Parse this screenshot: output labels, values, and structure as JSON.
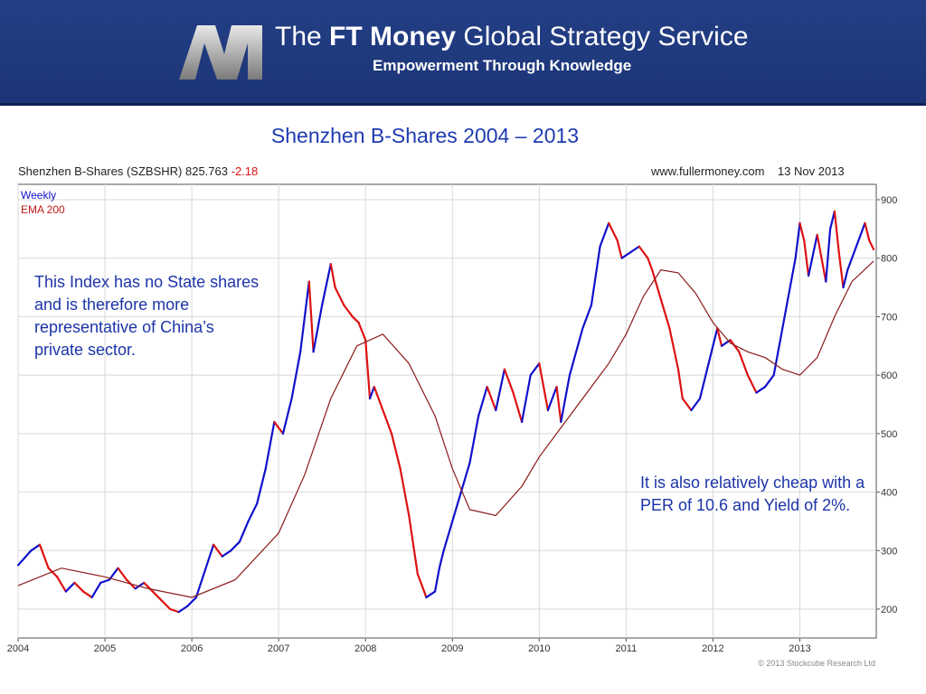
{
  "header": {
    "title_prefix": "The ",
    "title_bold": "FT Money",
    "title_rest": " Global Strategy Service",
    "tagline": "Empowerment Through Knowledge"
  },
  "slide_title": "Shenzhen B-Shares 2004 – 2013",
  "chart_header": {
    "name": "Shenzhen B-Shares (SZBSHR)",
    "value": "825.763",
    "change": "-2.18",
    "source": "www.fullermoney.com",
    "date": "13 Nov 2013"
  },
  "notes": {
    "left": "This Index has no State shares and is therefore more representative of China’s private sector.",
    "right": "It is also relatively cheap with a PER of 10.6 and Yield of 2%."
  },
  "copyright": "© 2013 Stockcube Research Ltd",
  "colors": {
    "banner": "#213e85",
    "up": "#1010cc",
    "down": "#dd1111",
    "ema": "#8b1a1a",
    "title": "#1f3bb0"
  },
  "chart_data": {
    "type": "line",
    "legend": [
      "Weekly",
      "EMA 200"
    ],
    "legend_placement": "top-left",
    "grid": true,
    "x_tick_labels": [
      "2004",
      "2005",
      "2006",
      "2007",
      "2008",
      "2009",
      "2010",
      "2011",
      "2012",
      "2013"
    ],
    "y_tick_labels": [
      "200",
      "300",
      "400",
      "500",
      "600",
      "700",
      "800",
      "900"
    ],
    "ylim": [
      160,
      910
    ],
    "xlim": [
      2004.0,
      2013.88
    ],
    "series": [
      {
        "name": "Weekly",
        "x": [
          2004.0,
          2004.15,
          2004.25,
          2004.35,
          2004.45,
          2004.55,
          2004.65,
          2004.75,
          2004.85,
          2004.95,
          2005.05,
          2005.15,
          2005.25,
          2005.35,
          2005.45,
          2005.55,
          2005.65,
          2005.75,
          2005.85,
          2005.95,
          2006.05,
          2006.15,
          2006.25,
          2006.35,
          2006.45,
          2006.55,
          2006.65,
          2006.75,
          2006.85,
          2006.95,
          2007.05,
          2007.15,
          2007.25,
          2007.3,
          2007.35,
          2007.4,
          2007.5,
          2007.6,
          2007.65,
          2007.75,
          2007.85,
          2007.92,
          2008.0,
          2008.05,
          2008.1,
          2008.2,
          2008.3,
          2008.4,
          2008.5,
          2008.6,
          2008.7,
          2008.8,
          2008.85,
          2008.9,
          2009.0,
          2009.1,
          2009.2,
          2009.3,
          2009.4,
          2009.5,
          2009.6,
          2009.7,
          2009.8,
          2009.9,
          2010.0,
          2010.1,
          2010.2,
          2010.25,
          2010.35,
          2010.5,
          2010.6,
          2010.7,
          2010.8,
          2010.9,
          2010.95,
          2011.05,
          2011.15,
          2011.25,
          2011.3,
          2011.4,
          2011.5,
          2011.6,
          2011.65,
          2011.75,
          2011.85,
          2011.95,
          2012.05,
          2012.1,
          2012.2,
          2012.3,
          2012.4,
          2012.5,
          2012.6,
          2012.7,
          2012.75,
          2012.85,
          2012.95,
          2013.0,
          2013.05,
          2013.1,
          2013.2,
          2013.25,
          2013.3,
          2013.35,
          2013.4,
          2013.45,
          2013.5,
          2013.55,
          2013.6,
          2013.65,
          2013.7,
          2013.75,
          2013.8,
          2013.85
        ],
        "y": [
          275,
          300,
          310,
          270,
          255,
          230,
          245,
          230,
          220,
          245,
          250,
          270,
          250,
          235,
          245,
          230,
          215,
          200,
          195,
          205,
          220,
          265,
          310,
          290,
          300,
          315,
          350,
          380,
          440,
          520,
          500,
          560,
          640,
          700,
          760,
          640,
          720,
          790,
          750,
          720,
          700,
          690,
          660,
          560,
          580,
          540,
          500,
          440,
          360,
          260,
          220,
          230,
          270,
          300,
          350,
          400,
          450,
          530,
          580,
          540,
          610,
          570,
          520,
          600,
          620,
          540,
          580,
          520,
          600,
          680,
          720,
          820,
          860,
          830,
          800,
          810,
          820,
          800,
          780,
          730,
          680,
          610,
          560,
          540,
          560,
          620,
          680,
          650,
          660,
          640,
          600,
          570,
          580,
          600,
          640,
          720,
          800,
          860,
          830,
          770,
          840,
          800,
          760,
          850,
          880,
          810,
          750,
          780,
          800,
          820,
          840,
          860,
          830,
          815
        ],
        "color": "#1010cc"
      },
      {
        "name": "EMA 200",
        "x": [
          2004.0,
          2004.5,
          2005.0,
          2005.5,
          2006.0,
          2006.5,
          2007.0,
          2007.3,
          2007.6,
          2007.9,
          2008.2,
          2008.5,
          2008.8,
          2009.0,
          2009.2,
          2009.5,
          2009.8,
          2010.0,
          2010.3,
          2010.6,
          2010.8,
          2011.0,
          2011.2,
          2011.4,
          2011.6,
          2011.8,
          2012.0,
          2012.2,
          2012.4,
          2012.6,
          2012.8,
          2013.0,
          2013.2,
          2013.4,
          2013.6,
          2013.85
        ],
        "y": [
          240,
          270,
          255,
          235,
          220,
          250,
          330,
          430,
          560,
          650,
          670,
          620,
          530,
          440,
          370,
          360,
          410,
          460,
          520,
          580,
          620,
          670,
          735,
          780,
          775,
          740,
          690,
          655,
          640,
          630,
          610,
          600,
          630,
          700,
          760,
          795
        ],
        "color": "#8b1a1a"
      }
    ]
  }
}
